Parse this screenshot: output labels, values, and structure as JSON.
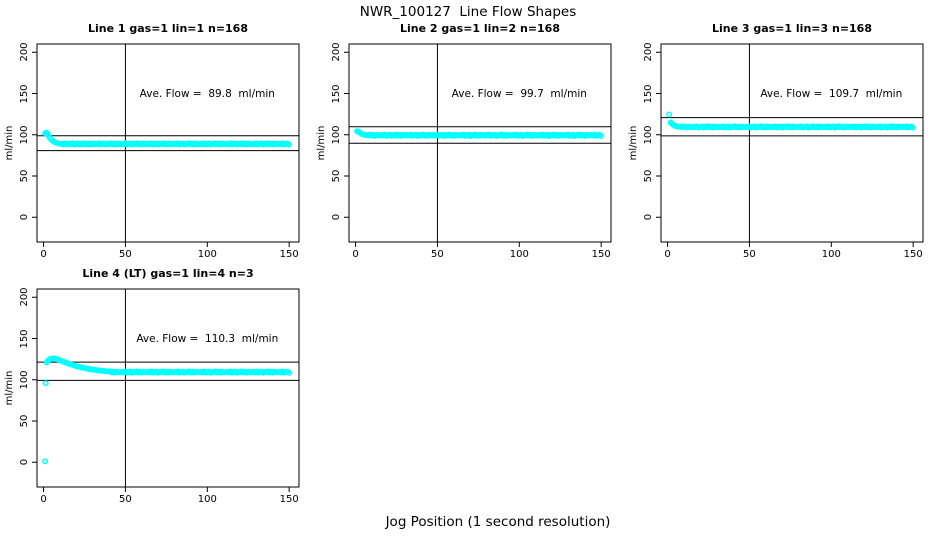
{
  "title": "NWR_100127  Line Flow Shapes",
  "xlabel": "Jog Position (1 second resolution)",
  "colors": {
    "points": "#00FFFF",
    "axis": "#000000",
    "background": "#FFFFFF",
    "text": "#000000"
  },
  "chart_data": {
    "type": "scatter",
    "suptitle": "NWR_100127  Line Flow Shapes",
    "shared_xlabel": "Jog Position (1 second resolution)",
    "ylabel": "ml/min",
    "xlim": [
      -4,
      156
    ],
    "ylim": [
      -30,
      210
    ],
    "xticks": [
      0,
      50,
      100,
      150
    ],
    "yticks": [
      0,
      50,
      100,
      150,
      200
    ],
    "grid": false,
    "point_style": "open-circle",
    "point_color": "#00FFFF",
    "vline_x": 50,
    "jitter_cycle": [
      0.3,
      -0.4,
      0.8,
      -0.7,
      0.1,
      0.6,
      -0.9,
      0.2,
      -0.2,
      0.9,
      -0.5,
      0.4,
      -0.8,
      0.5,
      -0.1,
      -0.3
    ],
    "panels": [
      {
        "title": "Line 1 gas=1 lin=1 n=168",
        "line": 1,
        "gas": 1,
        "lin": 1,
        "n": 168,
        "annotation": "Ave. Flow =  89.8  ml/min",
        "ave_flow_ml_min": 89.8,
        "hlines": [
          98.8,
          80.8
        ],
        "series": {
          "head_points": [
            [
              1,
              101.8
            ],
            [
              1.6,
              102.6
            ],
            [
              2.2,
              101.9
            ],
            [
              2.8,
              100.3
            ],
            [
              3.5,
              97.8
            ],
            [
              4.2,
              95.6
            ],
            [
              5,
              93.8
            ],
            [
              6,
              92.2
            ],
            [
              7,
              91.0
            ],
            [
              8,
              90.2
            ],
            [
              9,
              89.6
            ],
            [
              10,
              89.2
            ]
          ],
          "tail": {
            "x_start": 11,
            "x_end": 150,
            "x_step": 1,
            "y_mean": 88.9
          }
        }
      },
      {
        "title": "Line 2 gas=1 lin=2 n=168",
        "line": 2,
        "gas": 1,
        "lin": 2,
        "n": 168,
        "annotation": "Ave. Flow =  99.7  ml/min",
        "ave_flow_ml_min": 99.7,
        "hlines": [
          109.7,
          89.7
        ],
        "series": {
          "head_points": [
            [
              1,
              104.3
            ],
            [
              1.6,
              104.0
            ],
            [
              2.2,
              103.2
            ],
            [
              3,
              102.0
            ],
            [
              4,
              100.9
            ],
            [
              5,
              100.2
            ],
            [
              6,
              99.8
            ]
          ],
          "tail": {
            "x_start": 7,
            "x_end": 150,
            "x_step": 1,
            "y_mean": 99.4
          }
        }
      },
      {
        "title": "Line 3 gas=1 lin=3 n=168",
        "line": 3,
        "gas": 1,
        "lin": 3,
        "n": 168,
        "annotation": "Ave. Flow =  109.7  ml/min",
        "ave_flow_ml_min": 109.7,
        "hlines": [
          120.7,
          98.7
        ],
        "series": {
          "head_points": [
            [
              1,
              124.6
            ],
            [
              2,
              114.8
            ],
            [
              2.6,
              113.5
            ],
            [
              3.3,
              112.4
            ],
            [
              4,
              111.5
            ],
            [
              5,
              110.6
            ],
            [
              6,
              110.0
            ]
          ],
          "tail": {
            "x_start": 7,
            "x_end": 150,
            "x_step": 1,
            "y_mean": 109.5
          }
        }
      },
      {
        "title": "Line 4 (LT) gas=1 lin=4 n=3",
        "line": 4,
        "lt": true,
        "gas": 1,
        "lin": 4,
        "n": 3,
        "annotation": "Ave. Flow =  110.3  ml/min",
        "ave_flow_ml_min": 110.3,
        "hlines": [
          121.3,
          99.3
        ],
        "series": {
          "head_points": [
            [
              1,
              1.2
            ],
            [
              1.4,
              95.8
            ],
            [
              2,
              121.0
            ],
            [
              2.6,
              122.8
            ],
            [
              3.2,
              124.0
            ],
            [
              4,
              125.0
            ],
            [
              5,
              125.6
            ],
            [
              6,
              125.9
            ],
            [
              7,
              125.7
            ],
            [
              8,
              125.2
            ],
            [
              9,
              124.5
            ],
            [
              10,
              123.7
            ],
            [
              11,
              122.9
            ],
            [
              12,
              122.1
            ],
            [
              13,
              121.3
            ],
            [
              14,
              120.5
            ],
            [
              15,
              119.8
            ],
            [
              16,
              119.1
            ],
            [
              17,
              118.4
            ],
            [
              18,
              117.8
            ],
            [
              19,
              117.2
            ],
            [
              20,
              116.6
            ],
            [
              21,
              116.1
            ],
            [
              22,
              115.6
            ],
            [
              23,
              115.1
            ],
            [
              24,
              114.6
            ],
            [
              25,
              114.2
            ],
            [
              26,
              113.8
            ],
            [
              27,
              113.4
            ],
            [
              28,
              113.0
            ],
            [
              29,
              112.7
            ],
            [
              30,
              112.4
            ],
            [
              31,
              112.1
            ],
            [
              32,
              111.8
            ],
            [
              33,
              111.5
            ],
            [
              34,
              111.3
            ],
            [
              35,
              111.0
            ],
            [
              36,
              110.8
            ],
            [
              37,
              110.6
            ],
            [
              38,
              110.4
            ],
            [
              39,
              110.2
            ],
            [
              40,
              110.1
            ]
          ],
          "tail": {
            "x_start": 41,
            "x_end": 150,
            "x_step": 1,
            "y_mean": 109.3
          }
        }
      }
    ]
  }
}
